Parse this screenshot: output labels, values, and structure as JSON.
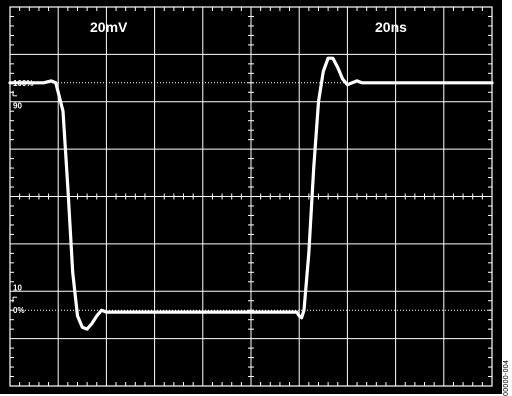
{
  "figure": {
    "id": "00000-004"
  },
  "chart_data": {
    "type": "line",
    "title": "",
    "xlabel": "",
    "ylabel": "",
    "vertical_scale": "20mV",
    "horizontal_scale": "20ns",
    "grid": true,
    "xlim": [
      0,
      200
    ],
    "ylim": [
      -100,
      100
    ],
    "level_labels": [
      {
        "text": "100%",
        "y": 60
      },
      {
        "text": "90",
        "y": 48
      },
      {
        "text": "10",
        "y": -48
      },
      {
        "text": "0%",
        "y": -60
      }
    ],
    "reference_lines": [
      60,
      -60
    ],
    "series": [
      {
        "x": [
          0,
          14,
          17,
          19,
          22,
          24,
          26,
          28,
          30,
          32,
          34,
          36,
          38,
          40,
          42,
          44,
          46,
          48,
          50,
          52,
          54,
          56,
          60,
          70,
          80,
          90,
          100,
          110,
          119,
          120,
          121,
          122,
          124,
          126,
          128,
          130,
          132,
          134,
          136,
          138,
          140,
          142,
          144,
          146,
          150,
          160,
          170,
          180,
          190,
          200
        ],
        "y": [
          60,
          60,
          61,
          60,
          45,
          5,
          -40,
          -63,
          -69,
          -70,
          -67,
          -63,
          -60,
          -61,
          -61,
          -61,
          -61,
          -61,
          -61,
          -61,
          -61,
          -61,
          -61,
          -61,
          -61,
          -61,
          -61,
          -61,
          -61,
          -63,
          -64,
          -60,
          -30,
          15,
          50,
          66,
          73,
          73,
          68,
          62,
          59,
          60,
          61,
          60,
          60,
          60,
          60,
          60,
          60,
          60
        ]
      }
    ]
  }
}
